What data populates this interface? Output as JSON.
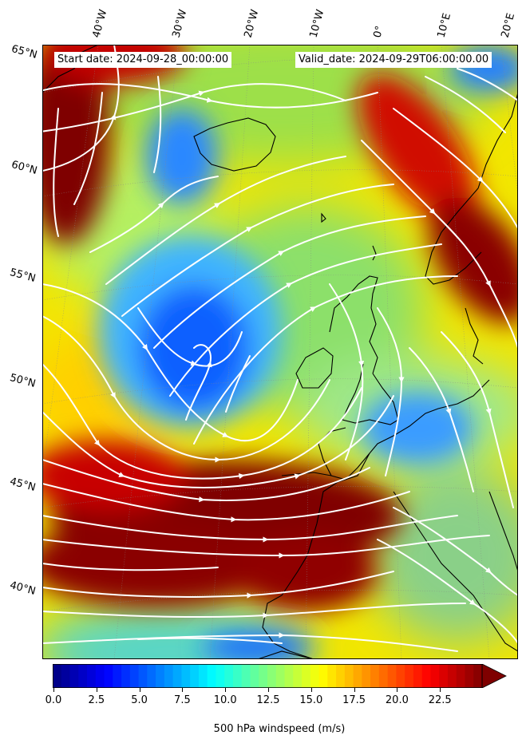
{
  "header": {
    "start_date": "Start date: 2024-09-28_00:00:00",
    "valid_date": "Valid_date: 2024-09-29T06:00:00.00"
  },
  "lat_labels": [
    "65°N",
    "60°N",
    "55°N",
    "50°N",
    "45°N",
    "40°N"
  ],
  "lon_labels": [
    "40°W",
    "30°W",
    "20°W",
    "10°W",
    "0°",
    "10°E",
    "20°E"
  ],
  "colorbar": {
    "label": "500 hPa windspeed (m/s)",
    "ticks": [
      "0.0",
      "2.5",
      "5.0",
      "7.5",
      "10.0",
      "12.5",
      "15.0",
      "17.5",
      "20.0",
      "22.5"
    ],
    "min": 0,
    "max": 25,
    "extend": "max",
    "colormap": "jet"
  },
  "colors": {
    "coastline": "#000000",
    "streamlines": "#ffffff",
    "extreme": "#7f0000"
  }
}
